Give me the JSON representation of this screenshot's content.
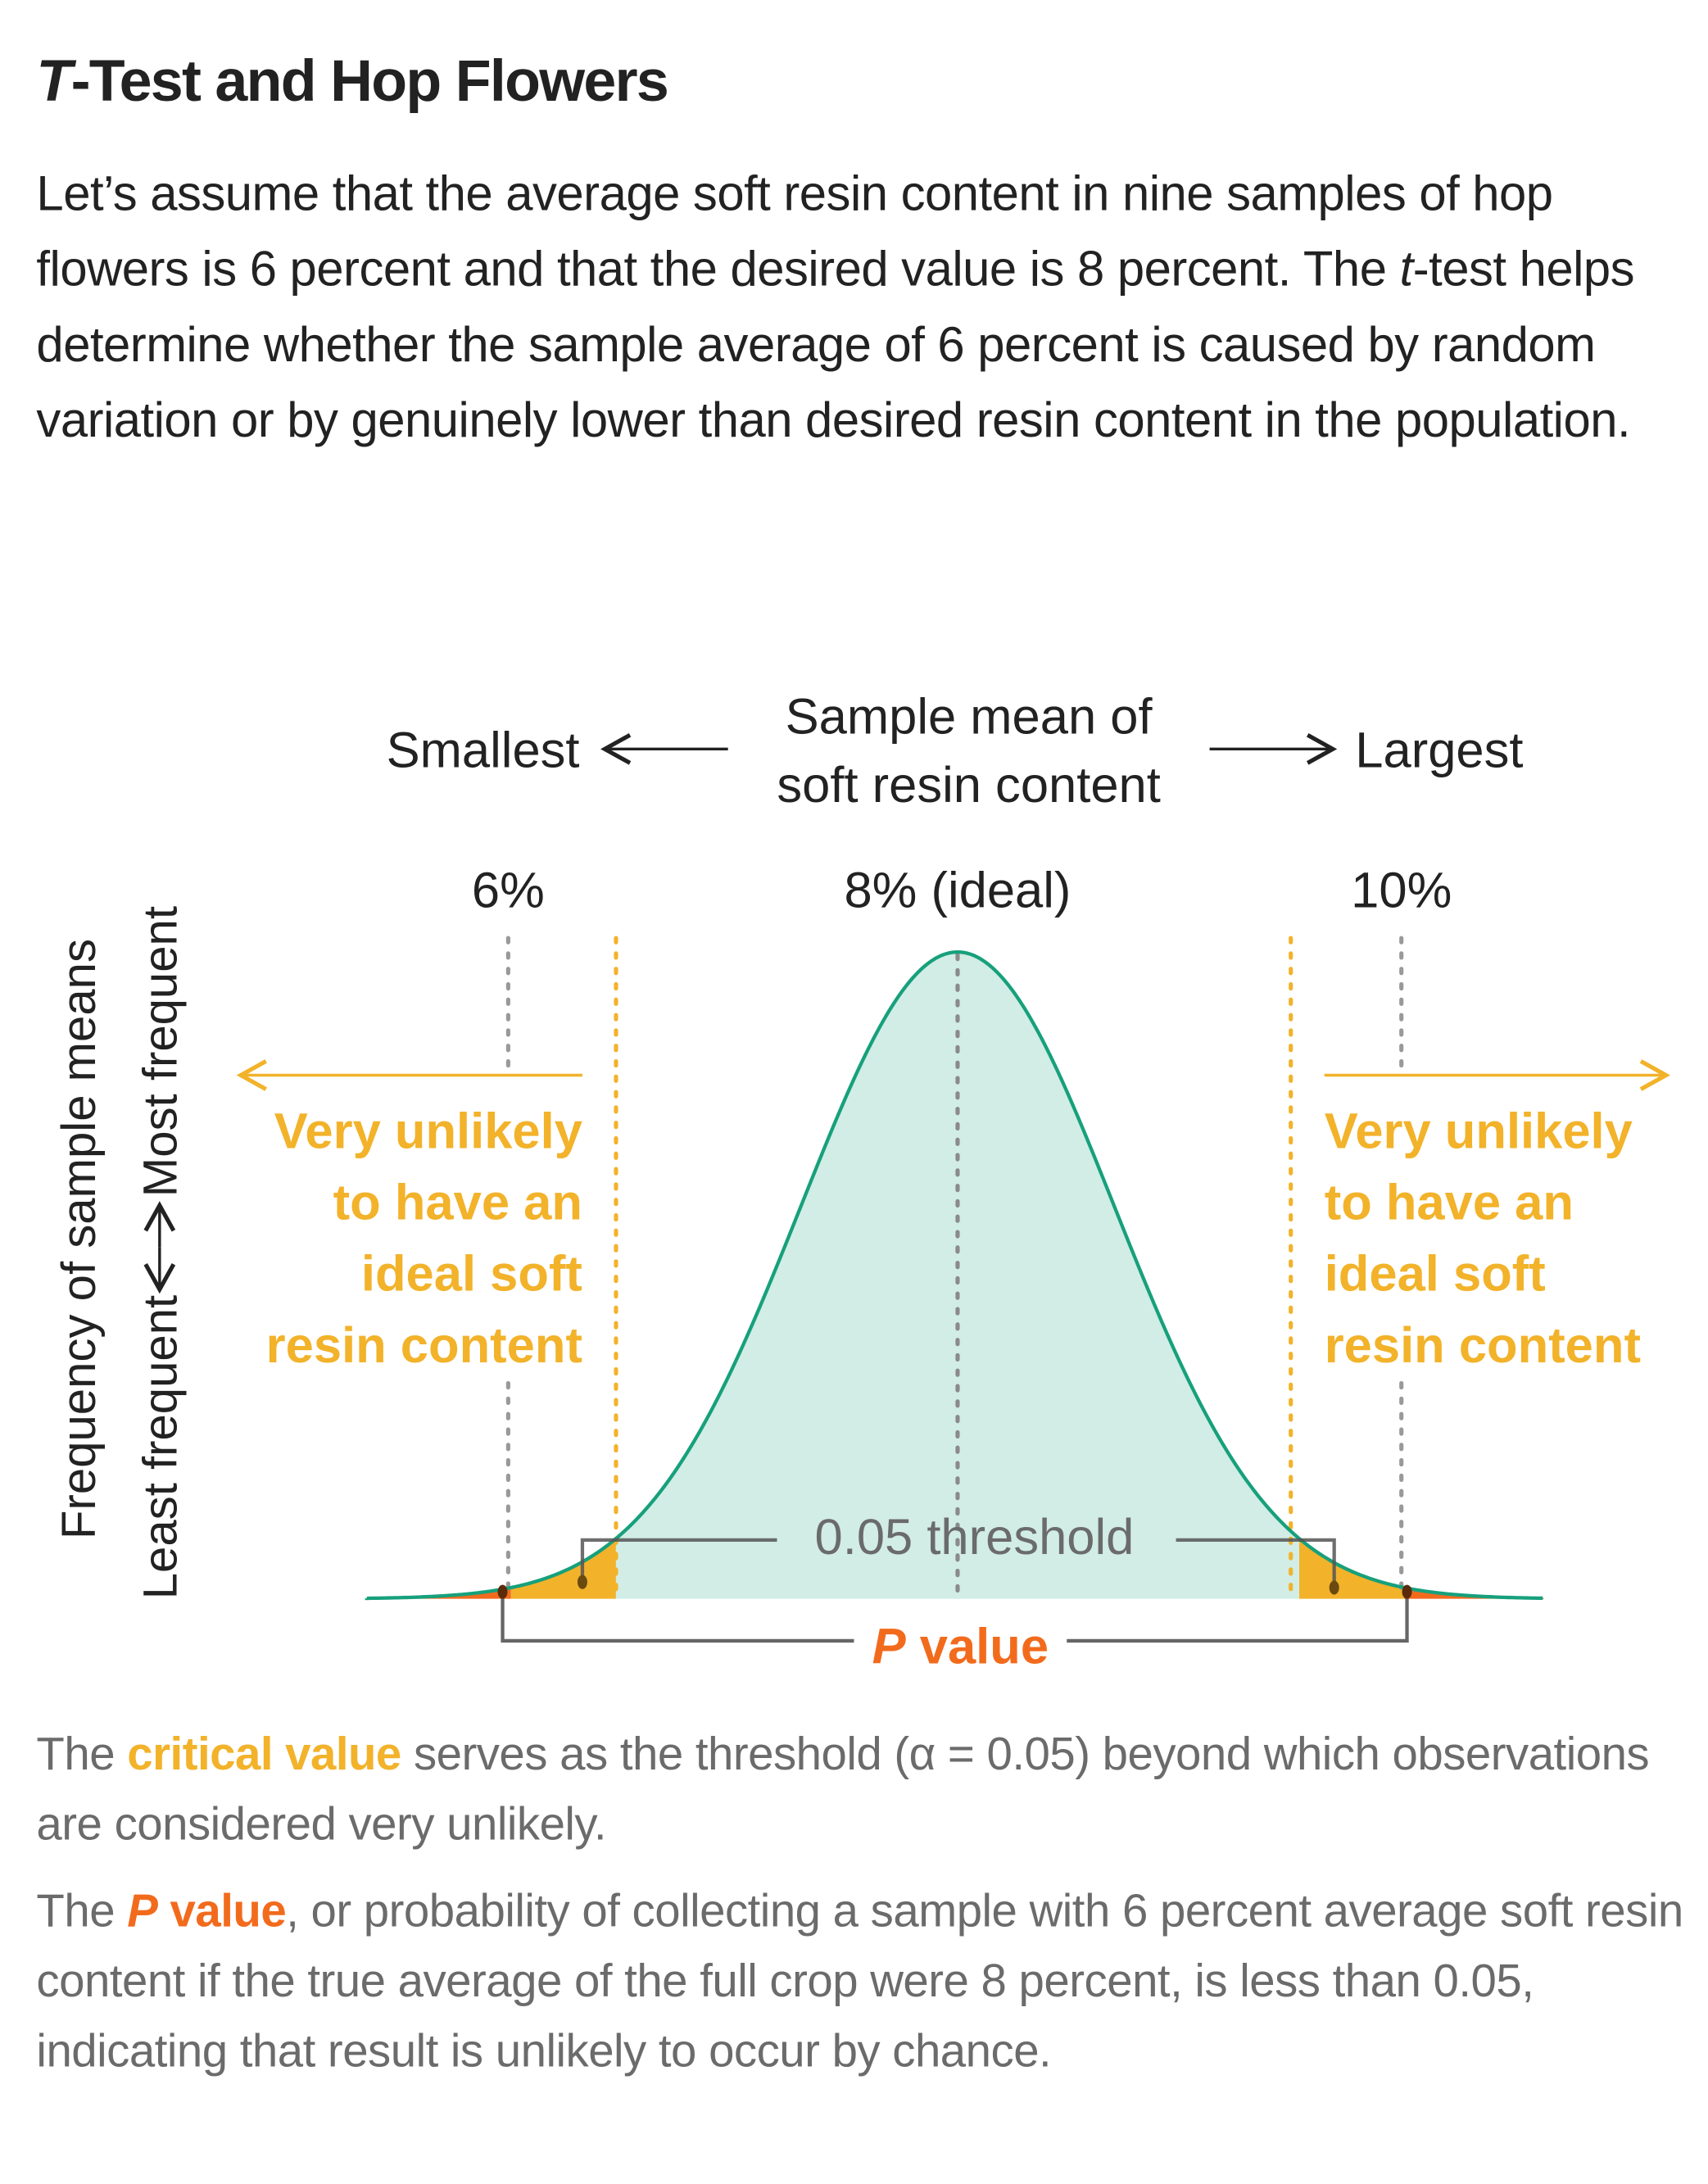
{
  "title": {
    "italic": "T",
    "rest": "-Test and Hop Flowers"
  },
  "intro": {
    "p1": "Let’s assume that the average soft resin content in nine samples of hop flowers is 6 percent and that the desired value is 8 percent. The ",
    "t": "t",
    "p2": "-test helps determine whether the sample average of 6 percent is caused by random variation or by genuinely lower than desired resin content in the population."
  },
  "chart_data": {
    "type": "area",
    "distribution": "normal",
    "mean": 8,
    "x_axis": {
      "label_line1": "Sample mean of",
      "label_line2": "soft resin content",
      "left_end": "Smallest",
      "right_end": "Largest"
    },
    "y_axis": {
      "label": "Frequency of sample means",
      "low": "Least frequent",
      "high": "Most frequent"
    },
    "ticks": [
      {
        "value": 6,
        "label": "6%"
      },
      {
        "value": 8,
        "label": "8% (ideal)"
      },
      {
        "value": 10,
        "label": "10%"
      }
    ],
    "critical_values": [
      6.47,
      9.53
    ],
    "regions": {
      "tail_unlikely_label": [
        "Very unlikely",
        "to have an",
        "ideal soft",
        "resin content"
      ]
    },
    "threshold_label": "0.05 threshold",
    "p_value_label": {
      "italic": "P",
      "rest": " value"
    },
    "colors": {
      "curve": "#17a07c",
      "fill": "#d1ede5",
      "critical": "#f2b22a",
      "p_value": "#f26b1d",
      "guide": "#999999"
    }
  },
  "footer": {
    "p1a": "The ",
    "p1b": "critical value",
    "p1c": " serves as the threshold (α = 0.05) beyond which observations are considered very unlikely.",
    "p2a": "The ",
    "p2b": "P",
    "p2c": " value",
    "p2d": ", or probability of collecting a sample with 6 percent average soft resin content if the true average of the full crop were 8 percent, is less than 0.05, indicating that result is unlikely to occur by chance."
  }
}
